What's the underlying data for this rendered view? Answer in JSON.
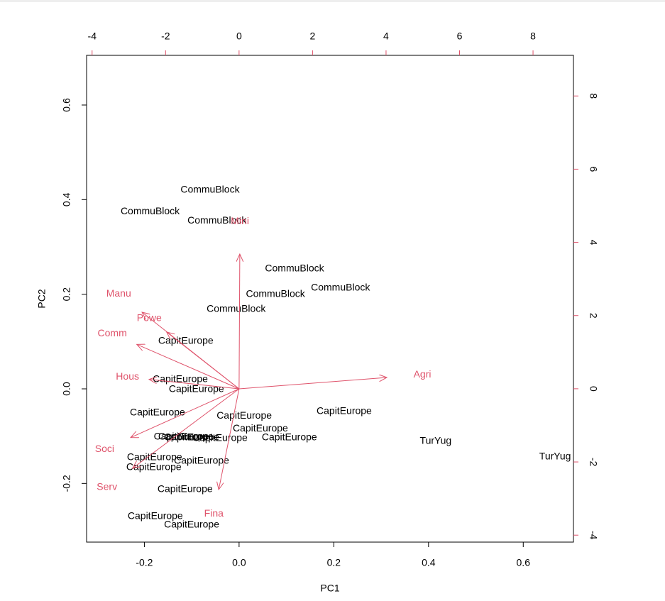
{
  "chart_data": {
    "type": "biplot",
    "xlabel": "PC1",
    "ylabel": "PC2",
    "xlim": [
      -0.322,
      0.706
    ],
    "ylim": [
      -0.324,
      0.705
    ],
    "xticks": [
      -0.2,
      {
        "value": 0,
        "label": "0.0"
      },
      0.2,
      0.4,
      0.6
    ],
    "yticks": [
      -0.2,
      {
        "value": 0,
        "label": "0.0"
      },
      0.2,
      0.4,
      0.6
    ],
    "x2lim": [
      -4.15,
      9.1
    ],
    "y2lim": [
      -4.19,
      9.11
    ],
    "x2ticks": [
      -4,
      -2,
      0,
      2,
      4,
      6,
      8
    ],
    "y2ticks": [
      -4,
      -2,
      0,
      2,
      4,
      6,
      8
    ],
    "scores": {
      "color": "#000000",
      "labels": [
        "CommuBlock",
        "CommuBlock",
        "CommuBlock",
        "CommuBlock",
        "CommuBlock",
        "CommuBlock",
        "CommuBlock",
        "CapitEurope",
        "CapitEurope",
        "CapitEurope",
        "CapitEurope",
        "CapitEurope",
        "CapitEurope",
        "CapitEurope",
        "CapitEurope",
        "CapitEurope",
        "CapitEurope",
        "CapitEurope",
        "CapitEurope",
        "CapitEurope",
        "CapitEurope",
        "CapitEurope",
        "CapitEurope",
        "TurYug",
        "TurYug",
        "CapitEurope",
        "CapitEurope"
      ],
      "x": [
        -0.79,
        -2.42,
        -0.6,
        1.51,
        0.99,
        2.76,
        -0.08,
        -1.45,
        -1.6,
        -1.16,
        -2.22,
        0.14,
        2.86,
        0.58,
        1.37,
        -1.57,
        -1.45,
        -1.29,
        -0.52,
        -2.3,
        -2.32,
        -1.02,
        -1.47,
        5.35,
        8.6,
        -2.28,
        -1.29
      ],
      "y": [
        5.43,
        4.84,
        4.59,
        3.28,
        2.58,
        2.75,
        2.17,
        1.3,
        0.25,
        -0.02,
        -0.66,
        -0.74,
        -0.62,
        -1.09,
        -1.34,
        -1.32,
        -1.32,
        -1.34,
        -1.36,
        -1.88,
        -2.15,
        -1.98,
        -2.75,
        -1.43,
        -1.86,
        -3.49,
        -3.72
      ]
    },
    "loadings": {
      "color": "#DF536B",
      "names": [
        "Agri",
        "Mini",
        "Manu",
        "Powe",
        "Comm",
        "Hous",
        "Soci",
        "Serv",
        "Fina"
      ],
      "x": [
        0.312,
        0.0015,
        -0.205,
        -0.153,
        -0.216,
        -0.19,
        -0.229,
        -0.225,
        -0.043
      ],
      "y": [
        0.024,
        0.285,
        0.162,
        0.12,
        0.094,
        0.02,
        -0.103,
        -0.168,
        -0.213
      ]
    }
  }
}
